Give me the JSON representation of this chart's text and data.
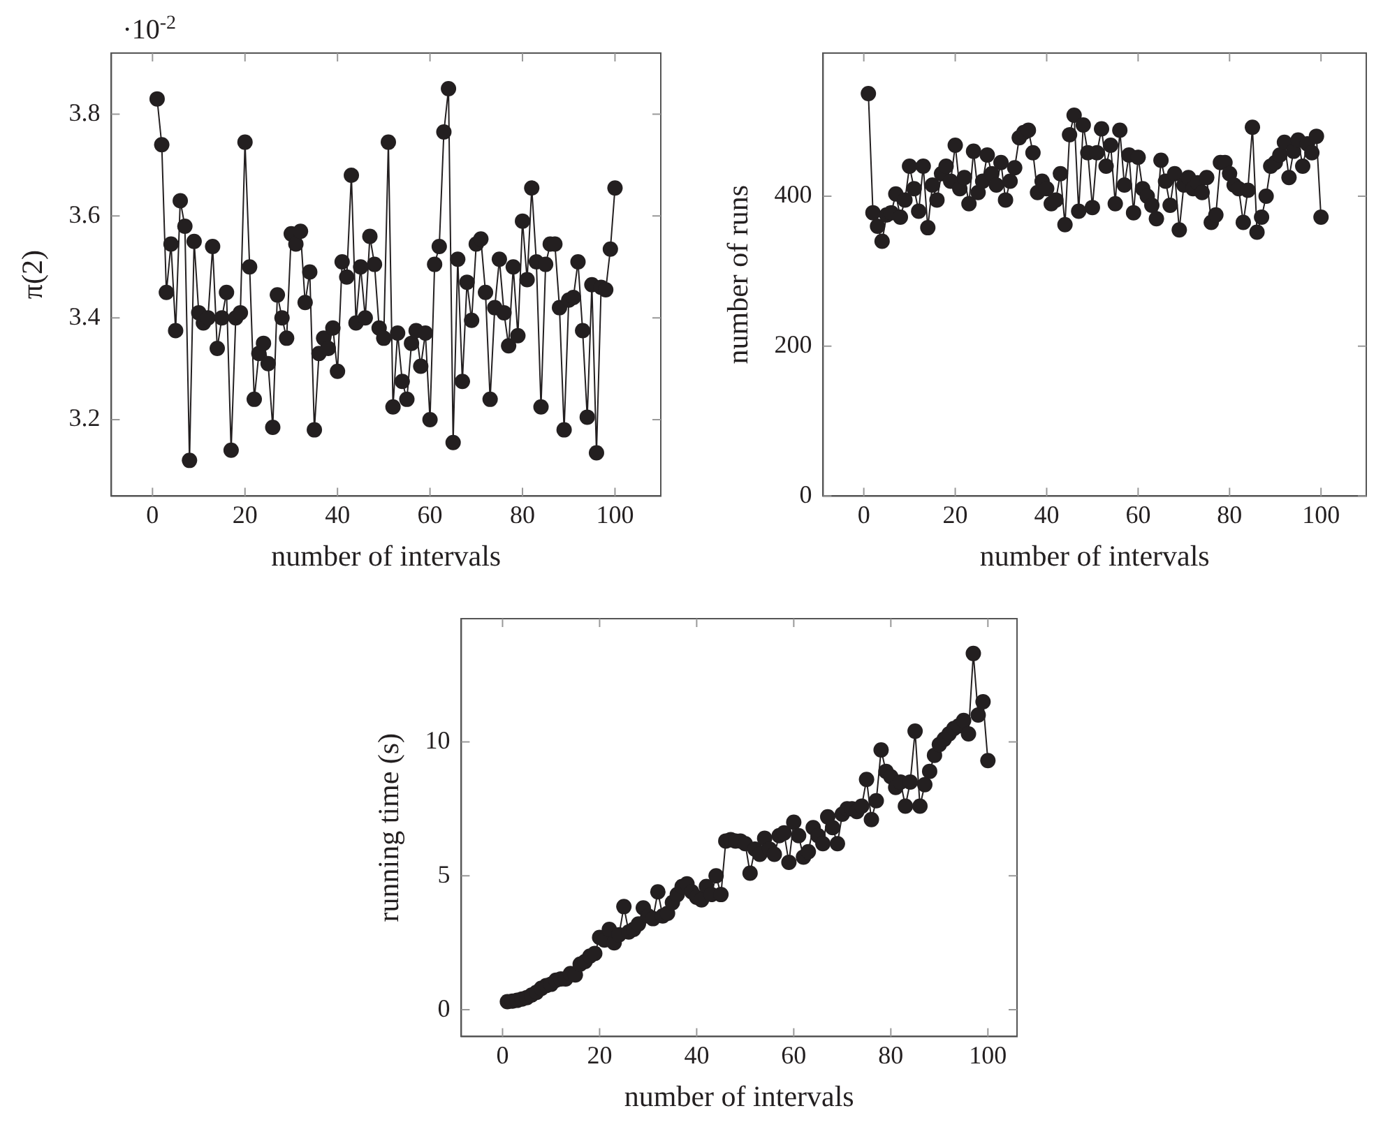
{
  "chart_data": [
    {
      "type": "line",
      "xlabel": "number of intervals",
      "ylabel": "π(2)",
      "annotations": [
        "·10$^{-2}$"
      ],
      "marker": "circle",
      "grid": false,
      "xlim": [
        -8.9,
        109.9
      ],
      "xticks": [
        0,
        20,
        40,
        60,
        80,
        100
      ],
      "ylim": [
        3.05,
        3.92
      ],
      "yticks": [
        3.2,
        3.4,
        3.6,
        3.8
      ],
      "x": [
        1,
        2,
        3,
        4,
        5,
        6,
        7,
        8,
        9,
        10,
        11,
        12,
        13,
        14,
        15,
        16,
        17,
        18,
        19,
        20,
        21,
        22,
        23,
        24,
        25,
        26,
        27,
        28,
        29,
        30,
        31,
        32,
        33,
        34,
        35,
        36,
        37,
        38,
        39,
        40,
        41,
        42,
        43,
        44,
        45,
        46,
        47,
        48,
        49,
        50,
        51,
        52,
        53,
        54,
        55,
        56,
        57,
        58,
        59,
        60,
        61,
        62,
        63,
        64,
        65,
        66,
        67,
        68,
        69,
        70,
        71,
        72,
        73,
        74,
        75,
        76,
        77,
        78,
        79,
        80,
        81,
        82,
        83,
        84,
        85,
        86,
        87,
        88,
        89,
        90,
        91,
        92,
        93,
        94,
        95,
        96,
        97,
        98,
        99,
        100
      ],
      "series": [
        {
          "color": "#231f20",
          "values": [
            3.83,
            3.74,
            3.45,
            3.545,
            3.375,
            3.63,
            3.58,
            3.12,
            3.55,
            3.41,
            3.39,
            3.4,
            3.54,
            3.34,
            3.4,
            3.45,
            3.14,
            3.4,
            3.41,
            3.745,
            3.5,
            3.24,
            3.33,
            3.35,
            3.31,
            3.185,
            3.445,
            3.4,
            3.36,
            3.565,
            3.545,
            3.57,
            3.43,
            3.49,
            3.18,
            3.33,
            3.36,
            3.34,
            3.38,
            3.295,
            3.51,
            3.48,
            3.68,
            3.39,
            3.5,
            3.4,
            3.56,
            3.505,
            3.38,
            3.36,
            3.745,
            3.225,
            3.37,
            3.275,
            3.24,
            3.35,
            3.375,
            3.305,
            3.37,
            3.2,
            3.505,
            3.54,
            3.765,
            3.85,
            3.155,
            3.515,
            3.275,
            3.47,
            3.395,
            3.545,
            3.555,
            3.45,
            3.24,
            3.42,
            3.515,
            3.41,
            3.345,
            3.5,
            3.365,
            3.59,
            3.475,
            3.655,
            3.51,
            3.225,
            3.505,
            3.545,
            3.545,
            3.42,
            3.18,
            3.435,
            3.44,
            3.51,
            3.375,
            3.205,
            3.465,
            3.135,
            3.46,
            3.455,
            3.535,
            3.655
          ]
        }
      ]
    },
    {
      "type": "line",
      "xlabel": "number of intervals",
      "ylabel": "number of runs",
      "marker": "circle",
      "grid": false,
      "xlim": [
        -8.9,
        109.9
      ],
      "xticks": [
        0,
        20,
        40,
        60,
        80,
        100
      ],
      "ylim": [
        0,
        591
      ],
      "yticks": [
        0,
        200,
        400
      ],
      "x": [
        1,
        2,
        3,
        4,
        5,
        6,
        7,
        8,
        9,
        10,
        11,
        12,
        13,
        14,
        15,
        16,
        17,
        18,
        19,
        20,
        21,
        22,
        23,
        24,
        25,
        26,
        27,
        28,
        29,
        30,
        31,
        32,
        33,
        34,
        35,
        36,
        37,
        38,
        39,
        40,
        41,
        42,
        43,
        44,
        45,
        46,
        47,
        48,
        49,
        50,
        51,
        52,
        53,
        54,
        55,
        56,
        57,
        58,
        59,
        60,
        61,
        62,
        63,
        64,
        65,
        66,
        67,
        68,
        69,
        70,
        71,
        72,
        73,
        74,
        75,
        76,
        77,
        78,
        79,
        80,
        81,
        82,
        83,
        84,
        85,
        86,
        87,
        88,
        89,
        90,
        91,
        92,
        93,
        94,
        95,
        96,
        97,
        98,
        99,
        100
      ],
      "series": [
        {
          "color": "#231f20",
          "values": [
            537,
            378,
            360,
            340,
            375,
            378,
            403,
            372,
            395,
            440,
            410,
            380,
            440,
            358,
            415,
            395,
            430,
            440,
            420,
            468,
            410,
            425,
            390,
            460,
            405,
            420,
            455,
            430,
            415,
            445,
            395,
            420,
            438,
            478,
            485,
            488,
            458,
            405,
            420,
            410,
            390,
            395,
            430,
            362,
            482,
            508,
            380,
            495,
            458,
            385,
            458,
            490,
            440,
            468,
            390,
            488,
            415,
            455,
            378,
            452,
            410,
            400,
            388,
            370,
            448,
            420,
            388,
            430,
            355,
            415,
            425,
            410,
            418,
            405,
            425,
            365,
            375,
            445,
            445,
            430,
            415,
            410,
            365,
            408,
            492,
            352,
            372,
            400,
            440,
            445,
            455,
            472,
            425,
            460,
            475,
            440,
            470,
            458,
            480,
            372
          ]
        }
      ]
    },
    {
      "type": "line",
      "xlabel": "number of intervals",
      "ylabel": "running time (s)",
      "marker": "circle",
      "grid": false,
      "xlim": [
        -8.5,
        106
      ],
      "xticks": [
        0,
        20,
        40,
        60,
        80,
        100
      ],
      "ylim": [
        -1,
        14.6
      ],
      "yticks": [
        0,
        5,
        10
      ],
      "x": [
        1,
        2,
        3,
        4,
        5,
        6,
        7,
        8,
        9,
        10,
        11,
        12,
        13,
        14,
        15,
        16,
        17,
        18,
        19,
        20,
        21,
        22,
        23,
        24,
        25,
        26,
        27,
        28,
        29,
        30,
        31,
        32,
        33,
        34,
        35,
        36,
        37,
        38,
        39,
        40,
        41,
        42,
        43,
        44,
        45,
        46,
        47,
        48,
        49,
        50,
        51,
        52,
        53,
        54,
        55,
        56,
        57,
        58,
        59,
        60,
        61,
        62,
        63,
        64,
        65,
        66,
        67,
        68,
        69,
        70,
        71,
        72,
        73,
        74,
        75,
        76,
        77,
        78,
        79,
        80,
        81,
        82,
        83,
        84,
        85,
        86,
        87,
        88,
        89,
        90,
        91,
        92,
        93,
        94,
        95,
        96,
        97,
        98,
        99,
        100
      ],
      "series": [
        {
          "color": "#231f20",
          "values": [
            0.3,
            0.32,
            0.35,
            0.4,
            0.45,
            0.55,
            0.65,
            0.8,
            0.9,
            0.95,
            1.1,
            1.15,
            1.15,
            1.35,
            1.3,
            1.7,
            1.8,
            2.0,
            2.1,
            2.7,
            2.6,
            3.0,
            2.5,
            2.8,
            3.85,
            2.9,
            3.0,
            3.2,
            3.8,
            3.5,
            3.4,
            4.4,
            3.5,
            3.6,
            4.0,
            4.3,
            4.6,
            4.7,
            4.4,
            4.2,
            4.1,
            4.6,
            4.3,
            5.0,
            4.3,
            6.3,
            6.35,
            6.3,
            6.3,
            6.2,
            5.1,
            6.0,
            5.8,
            6.4,
            6.0,
            5.8,
            6.5,
            6.6,
            5.5,
            7.0,
            6.5,
            5.7,
            5.9,
            6.8,
            6.5,
            6.2,
            7.2,
            6.8,
            6.2,
            7.3,
            7.5,
            7.5,
            7.4,
            7.6,
            8.6,
            7.1,
            7.8,
            9.7,
            8.9,
            8.7,
            8.3,
            8.5,
            7.6,
            8.5,
            10.4,
            7.6,
            8.4,
            8.9,
            9.5,
            9.9,
            10.1,
            10.3,
            10.5,
            10.6,
            10.8,
            10.3,
            13.3,
            11.0,
            11.5,
            9.3
          ]
        }
      ]
    }
  ]
}
